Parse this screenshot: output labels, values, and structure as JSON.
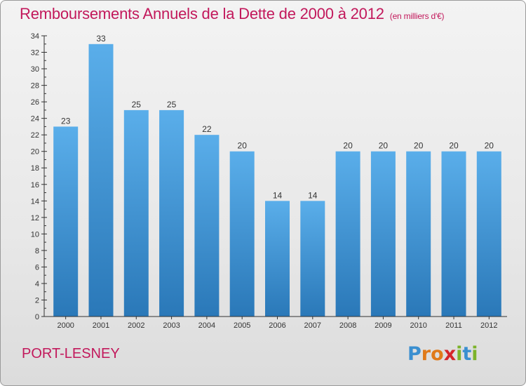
{
  "chart_data": {
    "type": "bar",
    "title": "Remboursements Annuels de la Dette de 2000 à 2012",
    "subtitle": "(en milliers d'€)",
    "categories": [
      "2000",
      "2001",
      "2002",
      "2003",
      "2004",
      "2005",
      "2006",
      "2007",
      "2008",
      "2009",
      "2010",
      "2011",
      "2012"
    ],
    "values": [
      23,
      33,
      25,
      25,
      22,
      20,
      14,
      14,
      20,
      20,
      20,
      20,
      20
    ],
    "data_labels": [
      "23",
      "33",
      "25",
      "25",
      "22",
      "20",
      "14",
      "14",
      "20",
      "20",
      "20",
      "20",
      "20"
    ],
    "ylim": [
      0,
      34
    ],
    "yticks": [
      "0",
      "2",
      "4",
      "6",
      "8",
      "10",
      "12",
      "14",
      "16",
      "18",
      "20",
      "22",
      "24",
      "26",
      "28",
      "30",
      "32",
      "34"
    ],
    "xlabel": "",
    "ylabel": "",
    "grid": false,
    "bar_color_top": "#5aaeea",
    "bar_color_bottom": "#2a78b8"
  },
  "footer": {
    "commune": "PORT-LESNEY",
    "logo": [
      "P",
      "r",
      "o",
      "x",
      "i",
      "t",
      "i"
    ],
    "logo_colors": [
      "#3a8fd0",
      "#e07a1a",
      "#e07a1a",
      "#d4252a",
      "#7cb32a",
      "#3a8fd0",
      "#7cb32a"
    ]
  },
  "colors": {
    "title": "#c2185b",
    "axis": "#333333"
  }
}
